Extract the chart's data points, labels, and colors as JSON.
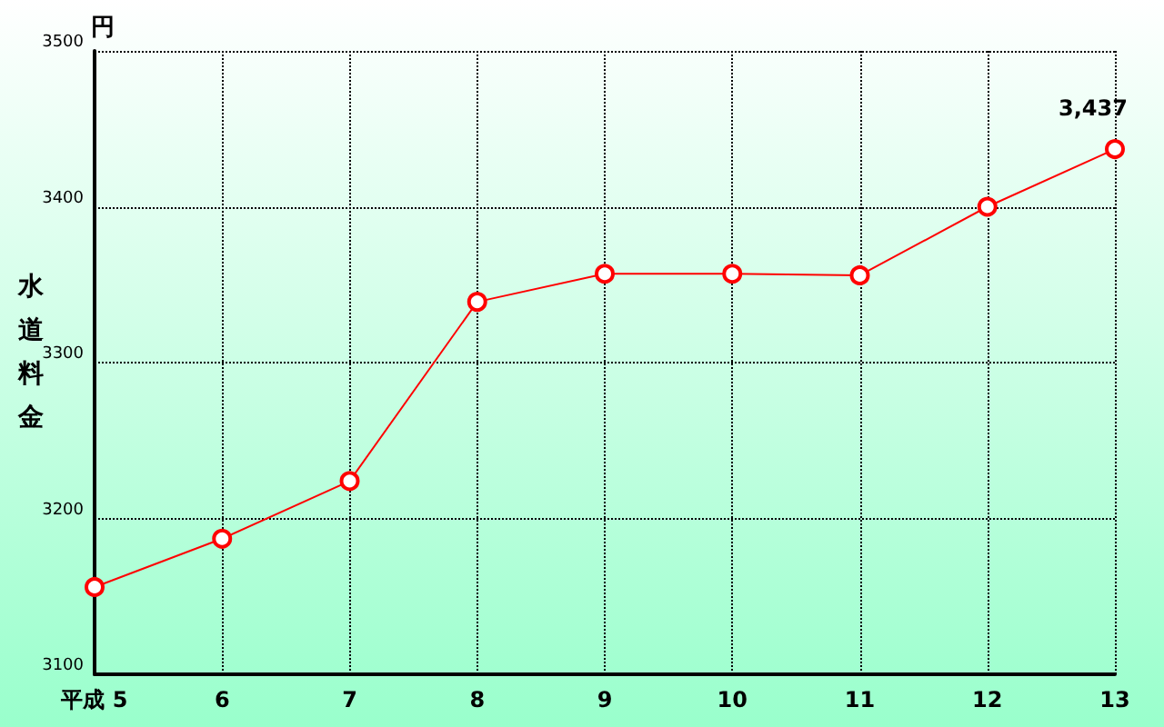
{
  "chart_data": {
    "type": "line",
    "ylabel": "水道料金",
    "annotations": [
      "円"
    ],
    "categories": [
      "平成 5",
      "6",
      "7",
      "8",
      "9",
      "10",
      "11",
      "12",
      "13"
    ],
    "series": [
      {
        "color": "#ff0000",
        "values": [
          3156,
          3187,
          3224,
          3339,
          3357,
          3357,
          3356,
          3400,
          3437
        ],
        "value_labels": [
          null,
          null,
          null,
          null,
          null,
          null,
          null,
          null,
          "3,437"
        ]
      }
    ],
    "ylim": [
      3100,
      3500
    ],
    "yticks": [
      3100,
      3200,
      3300,
      3400,
      3500
    ],
    "grid": true,
    "marker": "circle",
    "line_style": "solid"
  }
}
